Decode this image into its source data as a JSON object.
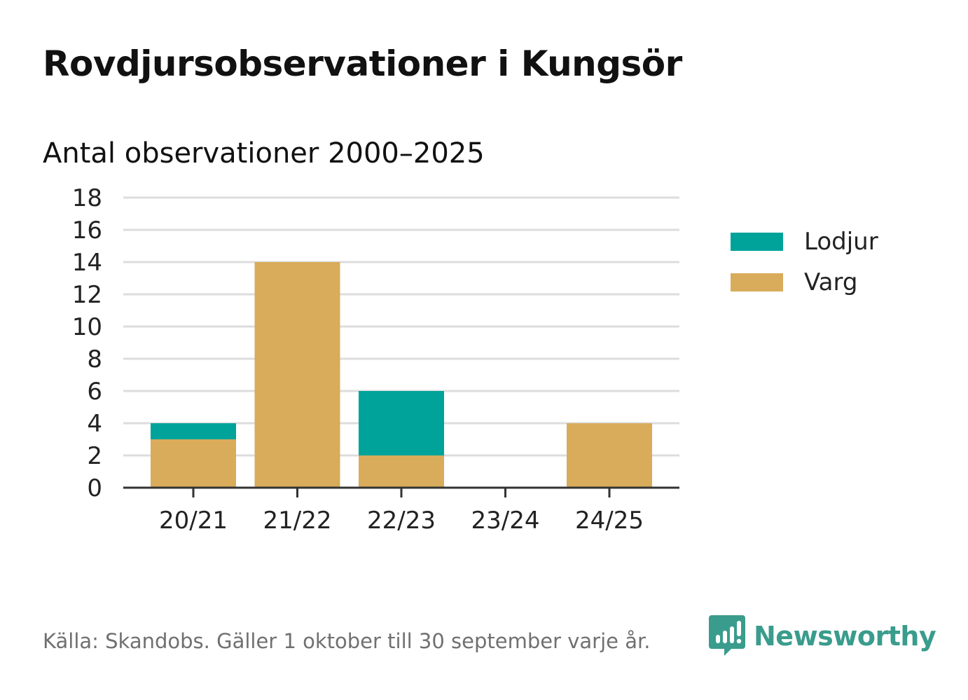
{
  "header": {
    "title": "Rovdjursobservationer i Kungsör",
    "subtitle": "Antal observationer 2000–2025"
  },
  "chart_data": {
    "type": "bar",
    "stacked": true,
    "categories": [
      "20/21",
      "21/22",
      "22/23",
      "23/24",
      "24/25"
    ],
    "series": [
      {
        "name": "Varg",
        "values": [
          3,
          14,
          2,
          0,
          4
        ],
        "color": "#d9ac5b"
      },
      {
        "name": "Lodjur",
        "values": [
          1,
          0,
          4,
          0,
          0
        ],
        "color": "#00a39a"
      }
    ],
    "ylim": [
      0,
      18
    ],
    "yticks": [
      "0",
      "2",
      "4",
      "6",
      "8",
      "10",
      "12",
      "14",
      "16",
      "18"
    ],
    "grid": true,
    "legend_position": "right"
  },
  "legend": {
    "items": [
      {
        "label": "Lodjur",
        "color": "#00a39a"
      },
      {
        "label": "Varg",
        "color": "#d9ac5b"
      }
    ]
  },
  "footer": {
    "source": "Källa: Skandobs. Gäller 1 oktober till 30 september varje år.",
    "brand": "Newsworthy",
    "brand_icon": "newsworthy-logo-icon",
    "brand_color": "#3a9c8c"
  }
}
